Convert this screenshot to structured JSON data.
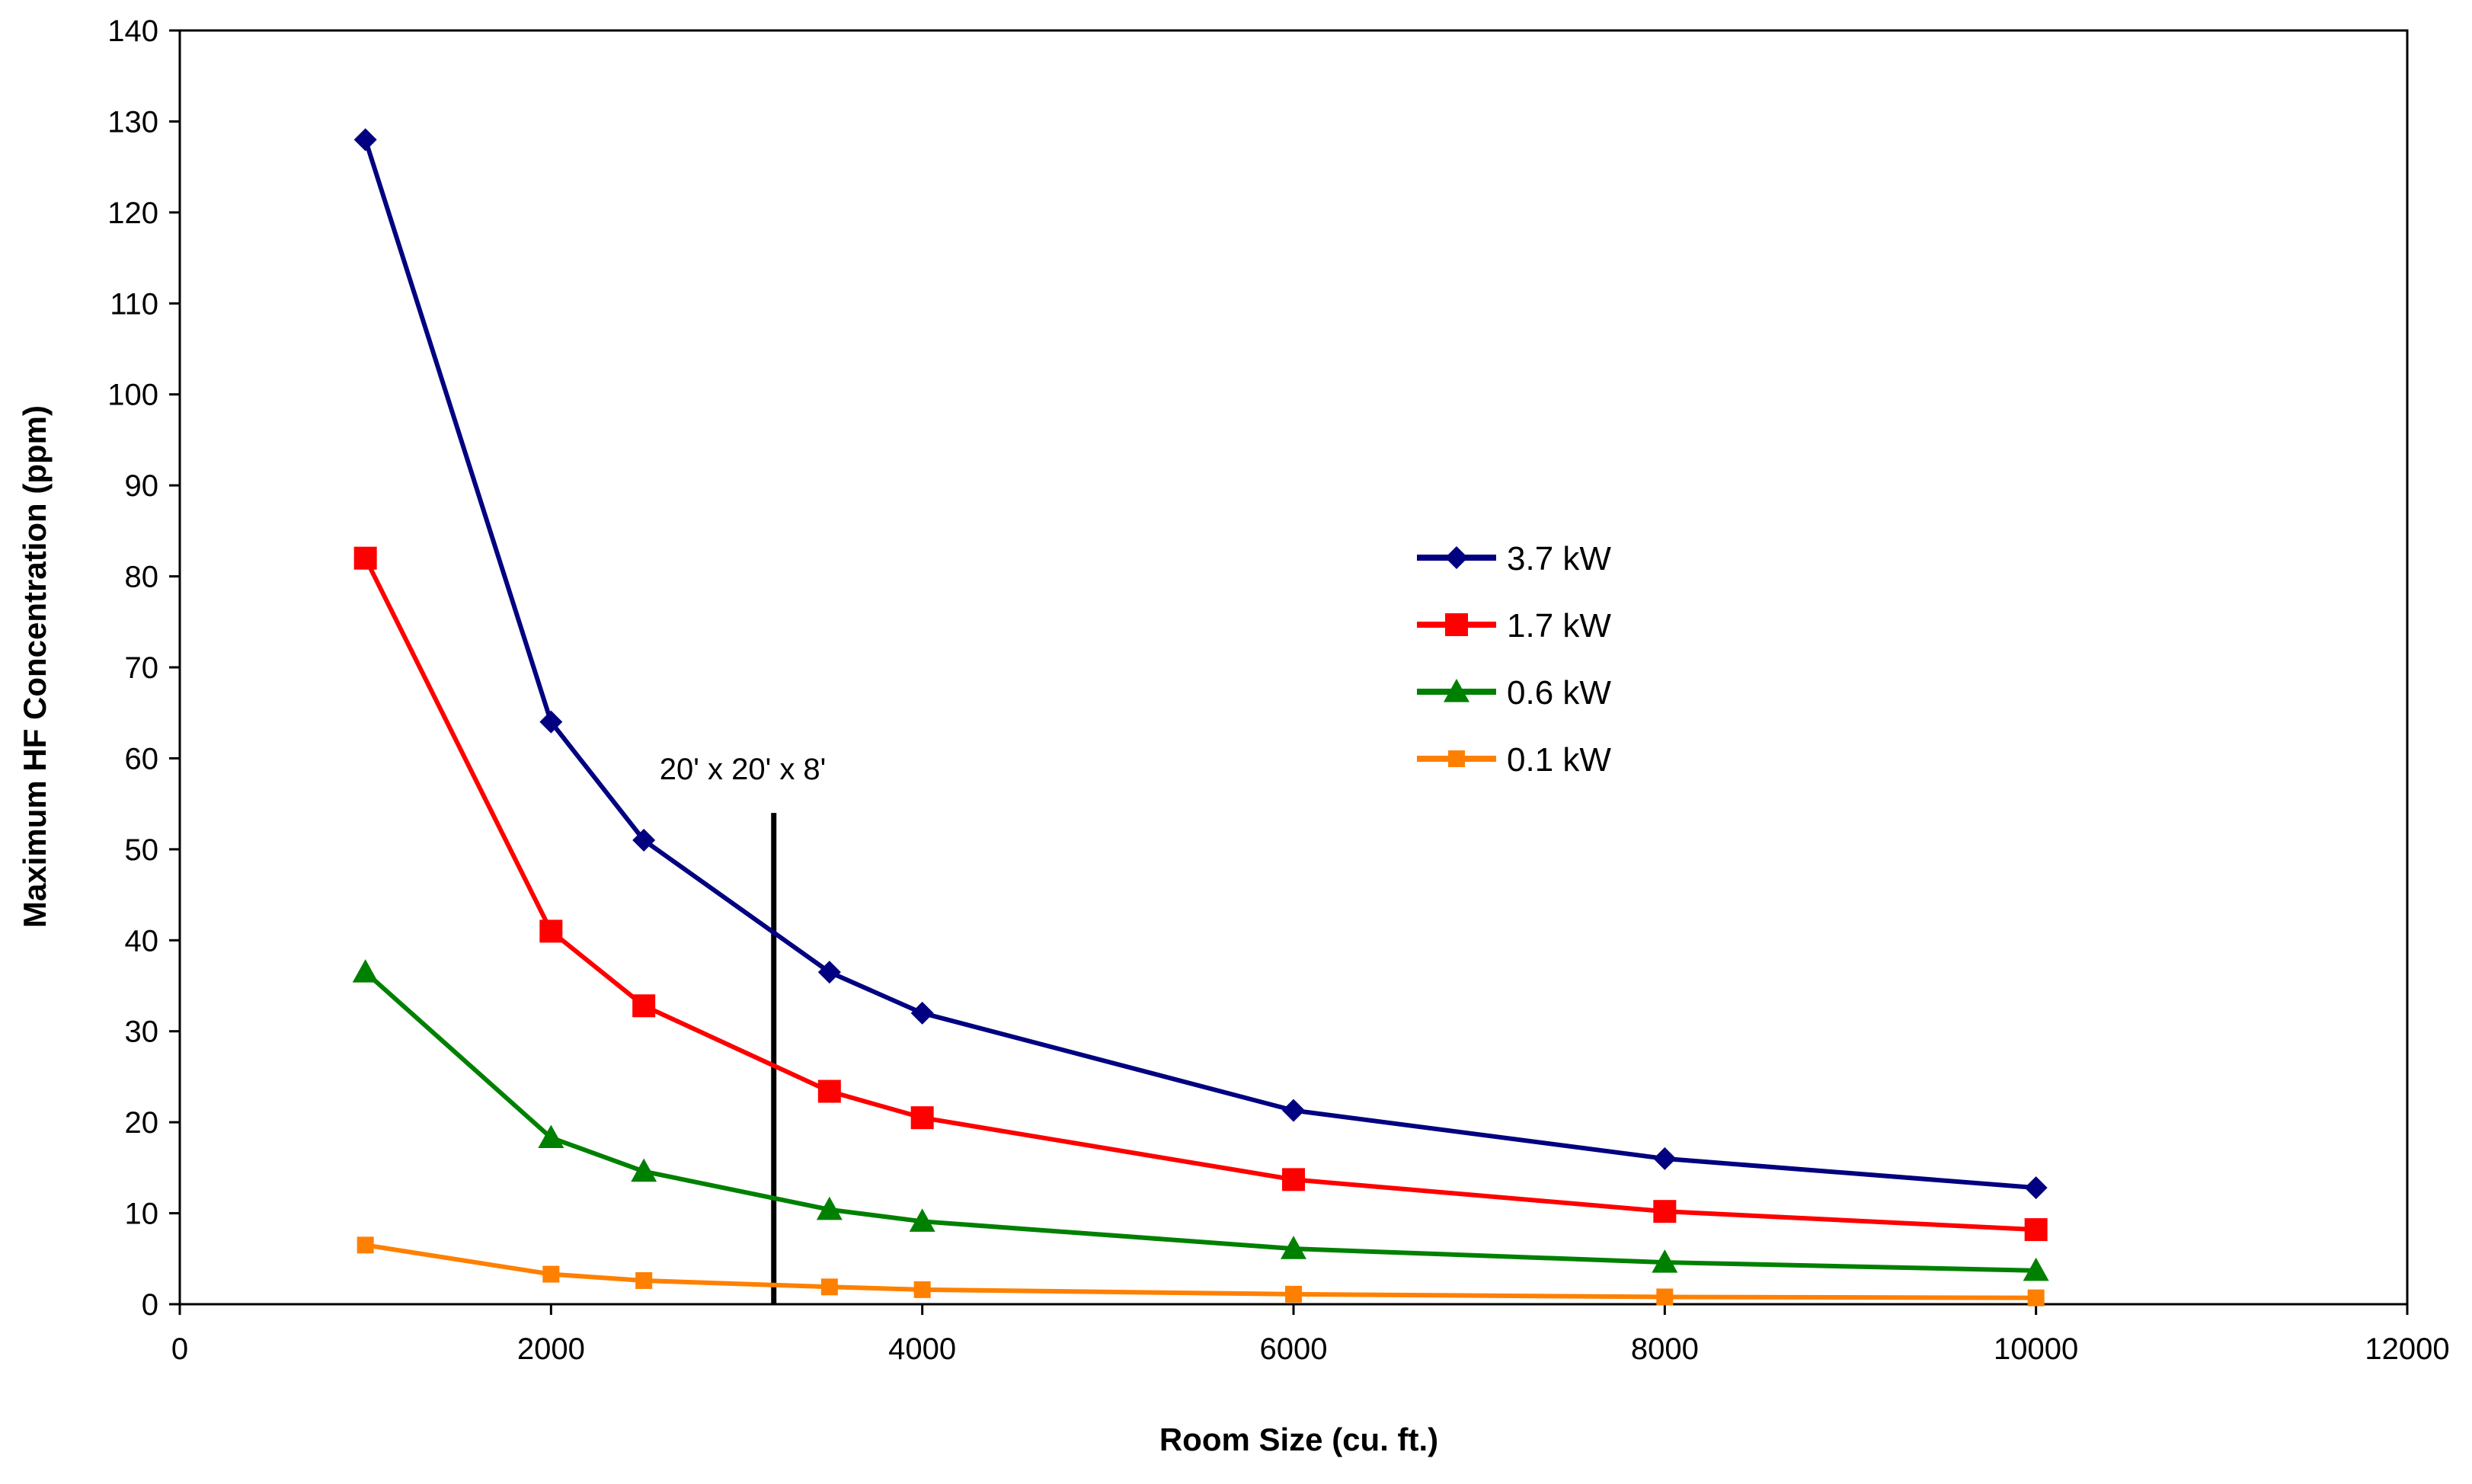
{
  "chart_data": {
    "type": "line",
    "xlabel": "Room Size (cu. ft.)",
    "ylabel": "Maximum HF Concentration (ppm)",
    "xlim": [
      0,
      12000
    ],
    "ylim": [
      0,
      140
    ],
    "xticks": [
      0,
      2000,
      4000,
      6000,
      8000,
      10000,
      12000
    ],
    "yticks": [
      0,
      10,
      20,
      30,
      40,
      50,
      60,
      70,
      80,
      90,
      100,
      110,
      120,
      130,
      140
    ],
    "grid": false,
    "legend_position": "center-right",
    "x": [
      1000,
      2000,
      2500,
      3500,
      4000,
      6000,
      8000,
      10000
    ],
    "series": [
      {
        "name": "3.7 kW",
        "color": "#000080",
        "marker": "diamond",
        "values": [
          128,
          64,
          51,
          36.5,
          32,
          21.3,
          16,
          12.8
        ]
      },
      {
        "name": "1.7 kW",
        "color": "#FF0000",
        "marker": "square",
        "values": [
          82,
          41,
          32.8,
          23.4,
          20.5,
          13.7,
          10.2,
          8.2
        ]
      },
      {
        "name": "0.6 kW",
        "color": "#008000",
        "marker": "triangle",
        "values": [
          36.5,
          18.3,
          14.6,
          10.4,
          9.1,
          6.1,
          4.6,
          3.7
        ]
      },
      {
        "name": "0.1 kW",
        "color": "#FF8000",
        "marker": "square-small",
        "values": [
          6.5,
          3.3,
          2.6,
          1.9,
          1.6,
          1.1,
          0.8,
          0.7
        ]
      }
    ],
    "annotations": [
      {
        "text": "20' x 20' x 8'",
        "x": 3200,
        "y_from": 0,
        "y_to": 54
      }
    ]
  }
}
